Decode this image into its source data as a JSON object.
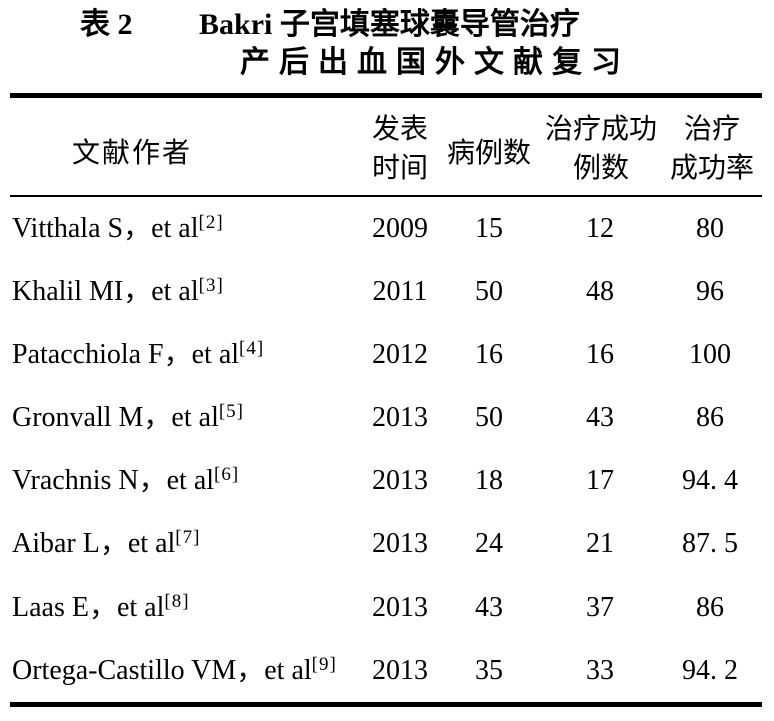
{
  "title": {
    "tag": "表 2",
    "line1": "Bakri 子宫填塞球囊导管治疗",
    "line2": "产后出血国外文献复习"
  },
  "header": {
    "author": "文献作者",
    "year_line1": "发表",
    "year_line2": "时间",
    "cases": "病例数",
    "success_line1": "治疗成功",
    "success_line2": "例数",
    "rate_line1": "治疗",
    "rate_line2": "成功率"
  },
  "rows": [
    {
      "author": "Vitthala S，et al",
      "ref": "[2]",
      "year": "2009",
      "cases": "15",
      "success": "12",
      "rate": "80"
    },
    {
      "author": "Khalil MI，et al",
      "ref": "[3]",
      "year": "2011",
      "cases": "50",
      "success": "48",
      "rate": "96"
    },
    {
      "author": "Patacchiola F，et al",
      "ref": "[4]",
      "year": "2012",
      "cases": "16",
      "success": "16",
      "rate": "100"
    },
    {
      "author": "Gronvall M，et al",
      "ref": "[5]",
      "year": "2013",
      "cases": "50",
      "success": "43",
      "rate": "86"
    },
    {
      "author": "Vrachnis N，et al",
      "ref": "[6]",
      "year": "2013",
      "cases": "18",
      "success": "17",
      "rate": "94. 4"
    },
    {
      "author": "Aibar L，et al",
      "ref": "[7]",
      "year": "2013",
      "cases": "24",
      "success": "21",
      "rate": "87. 5"
    },
    {
      "author": "Laas E，et al",
      "ref": "[8]",
      "year": "2013",
      "cases": "43",
      "success": "37",
      "rate": "86"
    },
    {
      "author": "Ortega-Castillo VM，et al",
      "ref": "[9]",
      "year": "2013",
      "cases": "35",
      "success": "33",
      "rate": "94. 2"
    }
  ],
  "chart_data": {
    "type": "table",
    "title": "表 2 Bakri 子宫填塞球囊导管治疗产后出血国外文献复习",
    "columns": [
      "文献作者",
      "发表时间",
      "病例数",
      "治疗成功例数",
      "治疗成功率"
    ],
    "rows": [
      [
        "Vitthala S, et al [2]",
        2009,
        15,
        12,
        80
      ],
      [
        "Khalil MI, et al [3]",
        2011,
        50,
        48,
        96
      ],
      [
        "Patacchiola F, et al [4]",
        2012,
        16,
        16,
        100
      ],
      [
        "Gronvall M, et al [5]",
        2013,
        50,
        43,
        86
      ],
      [
        "Vrachnis N, et al [6]",
        2013,
        18,
        17,
        94.4
      ],
      [
        "Aibar L, et al [7]",
        2013,
        24,
        21,
        87.5
      ],
      [
        "Laas E, et al [8]",
        2013,
        43,
        37,
        86
      ],
      [
        "Ortega-Castillo VM, et al [9]",
        2013,
        35,
        33,
        94.2
      ]
    ]
  },
  "colors": {
    "text": "#000000",
    "background": "#ffffff",
    "rule": "#000000"
  }
}
